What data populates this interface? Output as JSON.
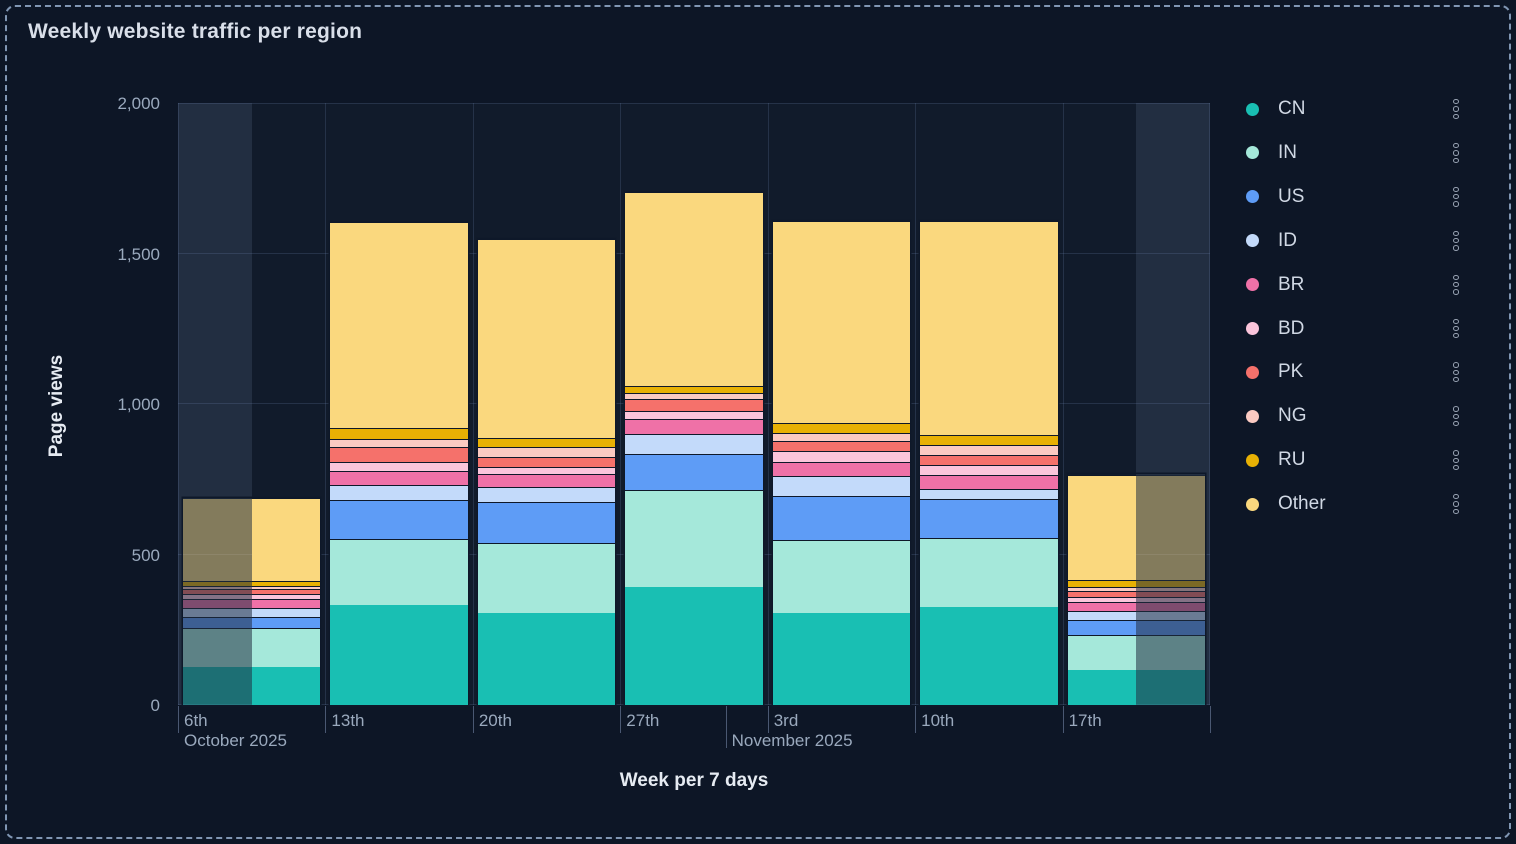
{
  "panel": {
    "title": "Weekly website traffic per region",
    "background": "#0D1626",
    "dashed_border_color": "#8096B3"
  },
  "chart_data": {
    "type": "bar",
    "stacked": true,
    "title": "Weekly website traffic per region",
    "xlabel": "Week per 7 days",
    "ylabel": "Page views",
    "ylim": [
      0,
      2000
    ],
    "yticks": [
      0,
      500,
      1000,
      1500,
      2000
    ],
    "ytick_labels": [
      "0",
      "500",
      "1,000",
      "1,500",
      "2,000"
    ],
    "grid": true,
    "legend_position": "right",
    "categories": [
      "6th",
      "13th",
      "20th",
      "27th",
      "3rd",
      "10th",
      "17th"
    ],
    "month_dividers": [
      {
        "label": "October 2025",
        "x_weeks": 0,
        "long_tick": false
      },
      {
        "label": "November 2025",
        "x_weeks": 3.7143,
        "long_tick": true
      }
    ],
    "partial_buckets": {
      "note": "first and last week are incomplete: half of each edge band is dimmed",
      "first_half_dimmed": true,
      "last_half_dimmed": true,
      "dim_opacity": 0.45,
      "zone_fill": "rgba(141,163,205,0.14)"
    },
    "series": [
      {
        "name": "CN",
        "color": "#19BFB3",
        "values": [
          127,
          331,
          305,
          393,
          305,
          325,
          116
        ]
      },
      {
        "name": "IN",
        "color": "#A5E8DA",
        "values": [
          128,
          220,
          234,
          321,
          243,
          229,
          116
        ]
      },
      {
        "name": "US",
        "color": "#5E9CF6",
        "values": [
          39,
          130,
          136,
          119,
          146,
          130,
          52
        ]
      },
      {
        "name": "ID",
        "color": "#C3DAFA",
        "values": [
          28,
          50,
          50,
          66,
          67,
          33,
          28
        ]
      },
      {
        "name": "BR",
        "color": "#EF71A7",
        "values": [
          31,
          46,
          41,
          50,
          47,
          48,
          31
        ]
      },
      {
        "name": "BD",
        "color": "#FBC5DB",
        "values": [
          16,
          30,
          26,
          29,
          36,
          33,
          15
        ]
      },
      {
        "name": "PK",
        "color": "#F5716B",
        "values": [
          15,
          50,
          33,
          38,
          33,
          32,
          22
        ]
      },
      {
        "name": "NG",
        "color": "#FBCAC2",
        "values": [
          10,
          28,
          33,
          22,
          26,
          33,
          13
        ]
      },
      {
        "name": "RU",
        "color": "#E8B104",
        "values": [
          19,
          36,
          28,
          22,
          35,
          33,
          24
        ]
      },
      {
        "name": "Other",
        "color": "#FAD87E",
        "values": [
          276,
          685,
          662,
          646,
          670,
          711,
          349
        ]
      }
    ],
    "totals": [
      689,
      1606,
      1548,
      1706,
      1608,
      1607,
      766
    ]
  },
  "legend": {
    "action_icon": "vertical-dots-icon"
  }
}
